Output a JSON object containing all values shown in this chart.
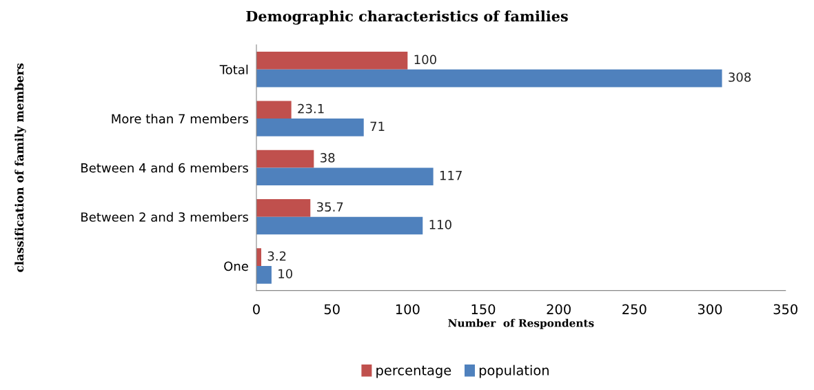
{
  "chart_data": {
    "type": "bar",
    "orientation": "horizontal",
    "title": "Demographic characteristics of families",
    "xlabel": "Number  of Respondents",
    "ylabel": "classification of family members",
    "categories": [
      "Total",
      "More than 7 members",
      "Between 4 and 6 members",
      "Between 2 and 3 members",
      "One"
    ],
    "series": [
      {
        "name": "percentage",
        "color": "#c0504d",
        "values": [
          100,
          23.1,
          38,
          35.7,
          3.2
        ]
      },
      {
        "name": "population",
        "color": "#4f81bd",
        "values": [
          308,
          71,
          117,
          110,
          10
        ]
      }
    ],
    "xlim": [
      0,
      350
    ],
    "xticks": [
      0,
      50,
      100,
      150,
      200,
      250,
      300,
      350
    ],
    "data_labels": true,
    "grid": false,
    "legend": "bottom"
  }
}
